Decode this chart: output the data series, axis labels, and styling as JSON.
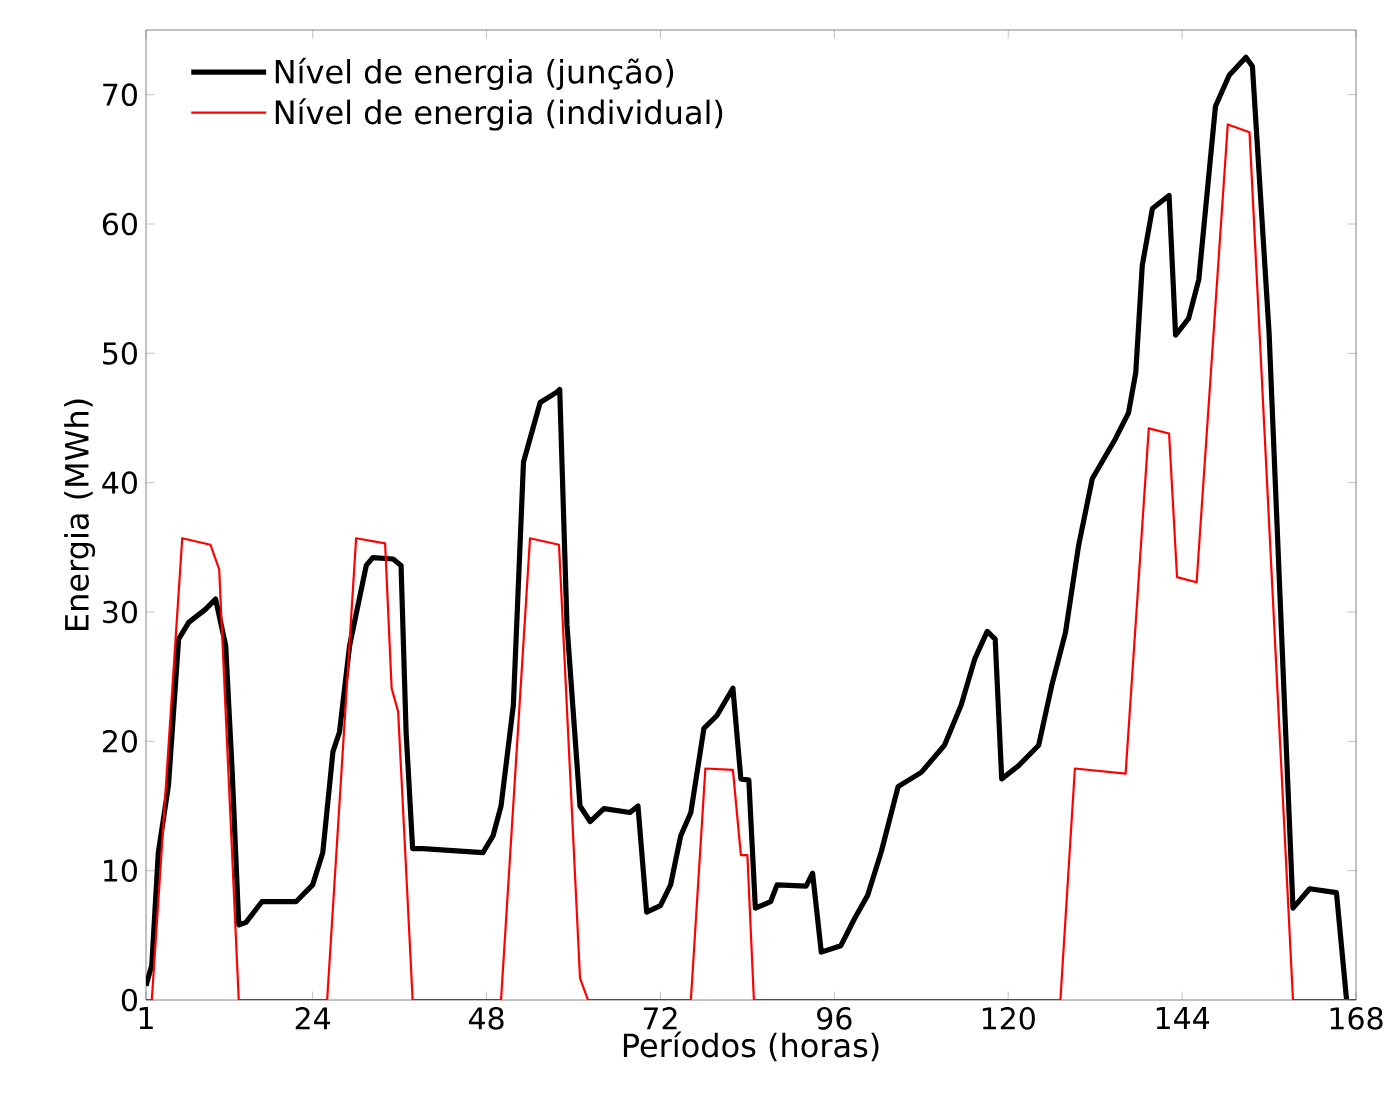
{
  "chart_data": {
    "type": "line",
    "xlabel": "Períodos (horas)",
    "ylabel": "Energia (MWh)",
    "xlim": [
      1,
      168
    ],
    "ylim": [
      0,
      75
    ],
    "xticks": [
      1,
      24,
      48,
      72,
      96,
      120,
      144,
      168
    ],
    "yticks": [
      0,
      10,
      20,
      30,
      40,
      50,
      60,
      70
    ],
    "grid": false,
    "legend": "top left",
    "series": [
      {
        "name": "Nível de energia (junção)",
        "color": "#000000",
        "x": [
          1,
          1.8,
          2.7,
          4.1,
          5.5,
          6.9,
          9.2,
          10.6,
          12,
          12.9,
          13.8,
          14.8,
          17,
          21.7,
          24,
          25.4,
          26.8,
          27.7,
          29.1,
          31.4,
          32.3,
          35.1,
          36.2,
          36.9,
          37.8,
          39.2,
          47.5,
          48.9,
          50,
          51.7,
          53.1,
          55.4,
          57.7,
          58.1,
          59.1,
          60.9,
          62.3,
          64.2,
          67.8,
          68.9,
          70.1,
          72,
          73.4,
          74.8,
          76.2,
          78,
          79.8,
          82,
          83.1,
          84.2,
          85.1,
          87.2,
          88.1,
          92.1,
          93,
          94.2,
          96.9,
          98.8,
          100.6,
          102.5,
          104.8,
          108,
          111.2,
          113.5,
          115.4,
          117.1,
          118.2,
          119.1,
          121.4,
          124.2,
          126,
          127.9,
          129.7,
          131.6,
          134.8,
          136.6,
          137.6,
          138.5,
          139.9,
          142.2,
          143.1,
          144.9,
          146.3,
          148.6,
          150.5,
          152.8,
          153.7,
          156,
          159.3,
          161.6,
          165.3,
          166.7
        ],
        "values": [
          1.1,
          2.7,
          11.4,
          16.6,
          27.9,
          29.2,
          30.2,
          31,
          27.4,
          17.6,
          5.8,
          6,
          7.6,
          7.6,
          8.9,
          11.4,
          19.2,
          20.7,
          27.4,
          33.6,
          34.2,
          34.1,
          33.6,
          20.7,
          11.7,
          11.7,
          11.4,
          12.7,
          15,
          22.8,
          41.6,
          46.2,
          47,
          47.2,
          29,
          15,
          13.8,
          14.8,
          14.5,
          15,
          6.8,
          7.3,
          8.9,
          12.7,
          14.5,
          21,
          22,
          24.1,
          17.1,
          17,
          7.1,
          7.6,
          8.9,
          8.8,
          9.8,
          3.7,
          4.2,
          6.3,
          8.1,
          11.5,
          16.5,
          17.6,
          19.7,
          22.8,
          26.4,
          28.5,
          27.9,
          17.1,
          18.1,
          19.7,
          24.3,
          28.4,
          35.1,
          40.3,
          43.4,
          45.4,
          48.5,
          56.8,
          61.2,
          62.2,
          51.4,
          52.7,
          55.7,
          69.1,
          71.5,
          72.9,
          72.2,
          51.6,
          7.1,
          8.6,
          8.3,
          0
        ]
      },
      {
        "name": "Nível de energia (individual)",
        "color": "#ff0000",
        "x": [
          1,
          1.8,
          6,
          9.9,
          11.1,
          13.8,
          26,
          30,
          34,
          34.9,
          35.8,
          37.8,
          50,
          54,
          58,
          60.9,
          62,
          76.2,
          78.2,
          82,
          83.1,
          84,
          84.9,
          127.2,
          129.2,
          136.2,
          139.4,
          142.2,
          143.3,
          146,
          150.3,
          153.3,
          159.3,
          168
        ],
        "values": [
          0,
          0,
          35.7,
          35.2,
          33.3,
          0,
          0,
          35.7,
          35.3,
          24.1,
          22.3,
          0,
          0,
          35.7,
          35.2,
          1.7,
          0,
          0,
          17.9,
          17.8,
          11.2,
          11.2,
          0,
          0,
          17.9,
          17.5,
          44.2,
          43.8,
          32.7,
          32.3,
          67.7,
          67.1,
          0,
          0
        ]
      }
    ]
  }
}
